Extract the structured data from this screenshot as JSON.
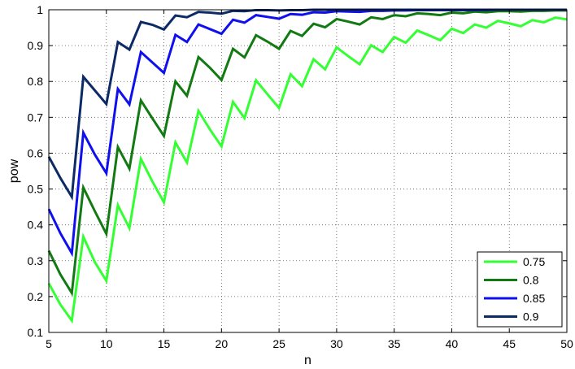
{
  "chart_data": {
    "type": "line",
    "xlabel": "n",
    "ylabel": "pow",
    "xlim": [
      5,
      50
    ],
    "ylim": [
      0.1,
      1
    ],
    "grid": "dotted",
    "legend_position": "bottom-right",
    "xticks": [
      "5",
      "10",
      "15",
      "20",
      "25",
      "30",
      "35",
      "40",
      "45",
      "50"
    ],
    "yticks": [
      "0.1",
      "0.2",
      "0.3",
      "0.4",
      "0.5",
      "0.6",
      "0.7",
      "0.8",
      "0.9",
      "1"
    ],
    "x": [
      5,
      6,
      7,
      8,
      9,
      10,
      11,
      12,
      13,
      14,
      15,
      16,
      17,
      18,
      19,
      20,
      21,
      22,
      23,
      24,
      25,
      26,
      27,
      28,
      29,
      30,
      31,
      32,
      33,
      34,
      35,
      36,
      37,
      38,
      39,
      40,
      41,
      42,
      43,
      44,
      45,
      46,
      47,
      48,
      49,
      50
    ],
    "series": [
      {
        "name": "0.75",
        "color": "#33ff33",
        "values": [
          0.237,
          0.178,
          0.133,
          0.367,
          0.296,
          0.244,
          0.455,
          0.391,
          0.584,
          0.521,
          0.463,
          0.63,
          0.574,
          0.718,
          0.666,
          0.619,
          0.743,
          0.698,
          0.803,
          0.764,
          0.726,
          0.82,
          0.787,
          0.862,
          0.834,
          0.895,
          0.871,
          0.848,
          0.901,
          0.882,
          0.924,
          0.908,
          0.942,
          0.929,
          0.915,
          0.947,
          0.935,
          0.959,
          0.95,
          0.969,
          0.962,
          0.954,
          0.971,
          0.965,
          0.978,
          0.973
        ]
      },
      {
        "name": "0.8",
        "color": "#127a12",
        "values": [
          0.328,
          0.262,
          0.21,
          0.504,
          0.438,
          0.375,
          0.617,
          0.557,
          0.747,
          0.697,
          0.648,
          0.8,
          0.76,
          0.868,
          0.838,
          0.804,
          0.891,
          0.867,
          0.929,
          0.911,
          0.891,
          0.941,
          0.927,
          0.961,
          0.951,
          0.974,
          0.967,
          0.959,
          0.979,
          0.974,
          0.985,
          0.982,
          0.99,
          0.988,
          0.985,
          0.992,
          0.99,
          0.995,
          0.993,
          0.996,
          0.996,
          0.995,
          0.997,
          0.997,
          0.998,
          0.998
        ]
      },
      {
        "name": "0.85",
        "color": "#1010ee",
        "values": [
          0.444,
          0.377,
          0.321,
          0.657,
          0.596,
          0.544,
          0.779,
          0.736,
          0.882,
          0.853,
          0.824,
          0.93,
          0.91,
          0.959,
          0.946,
          0.933,
          0.972,
          0.964,
          0.985,
          0.98,
          0.975,
          0.988,
          0.986,
          0.993,
          0.992,
          0.996,
          0.995,
          0.994,
          0.997,
          0.997,
          0.998,
          0.998,
          0.999,
          0.999,
          0.999,
          0.999,
          0.999,
          0.999,
          0.999,
          1,
          1,
          1,
          1,
          1,
          1,
          1
        ]
      },
      {
        "name": "0.9",
        "color": "#0c2a66",
        "values": [
          0.59,
          0.531,
          0.478,
          0.813,
          0.775,
          0.737,
          0.91,
          0.889,
          0.966,
          0.958,
          0.945,
          0.984,
          0.979,
          0.994,
          0.992,
          0.989,
          0.997,
          0.996,
          0.999,
          0.999,
          0.998,
          0.999,
          0.999,
          1,
          1,
          1,
          1,
          1,
          1,
          1,
          1,
          1,
          1,
          1,
          1,
          1,
          1,
          1,
          1,
          1,
          1,
          1,
          1,
          1,
          1,
          1
        ]
      }
    ]
  }
}
